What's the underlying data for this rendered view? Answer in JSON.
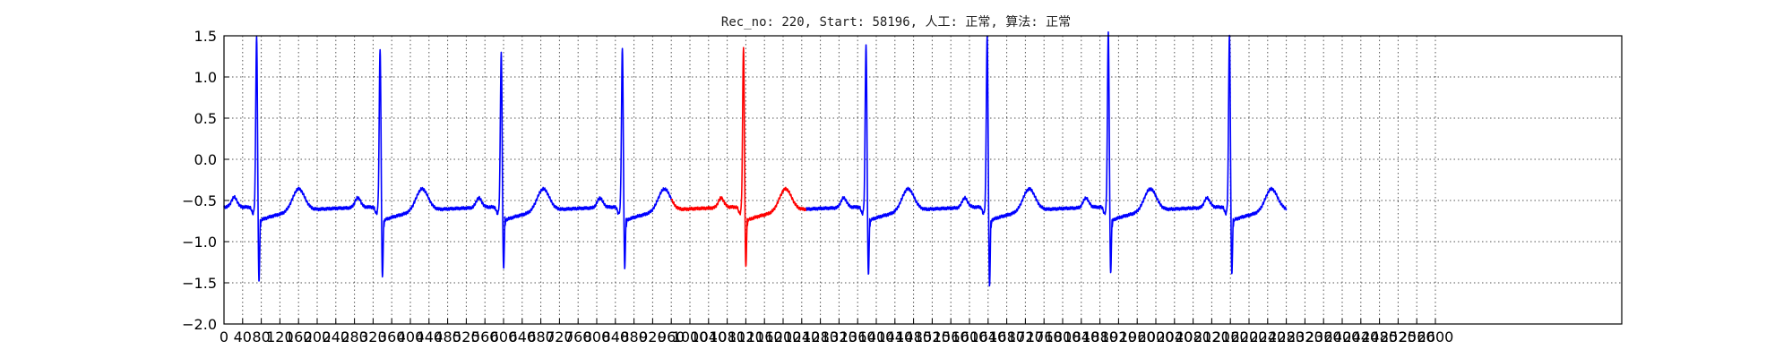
{
  "chart_data": {
    "type": "line",
    "title": "Rec_no: 220, Start: 58196, 人工: 正常, 算法: 正常",
    "xlabel": "",
    "ylabel": "",
    "xlim": [
      0,
      3000
    ],
    "ylim": [
      -2.0,
      1.5
    ],
    "grid": true,
    "y_ticks": [
      "1.5",
      "1.0",
      "0.5",
      "0.0",
      "−0.5",
      "−1.0",
      "−1.5",
      "−2.0"
    ],
    "y_tick_values": [
      1.5,
      1.0,
      0.5,
      0.0,
      -0.5,
      -1.0,
      -1.5,
      -2.0
    ],
    "x_ticks": [
      0,
      40,
      80,
      120,
      160,
      200,
      240,
      280,
      320,
      360,
      400,
      440,
      480,
      520,
      560,
      600,
      640,
      680,
      720,
      760,
      800,
      840,
      880,
      920,
      960,
      1000,
      1040,
      1080,
      1120,
      1160,
      1200,
      1240,
      1280,
      1320,
      1360,
      1400,
      1440,
      1480,
      1520,
      1560,
      1600,
      1640,
      1680,
      1720,
      1760,
      1800,
      1840,
      1880,
      1920,
      1960,
      2000,
      2040,
      2080,
      2120,
      2160,
      2200,
      2240,
      2280,
      2320,
      2360,
      2400,
      2440,
      2480,
      2520,
      2560,
      2600
    ],
    "x_tick_labels": [
      "0",
      "40",
      "80",
      "120",
      "160",
      "200",
      "240",
      "280",
      "320",
      "360",
      "400",
      "440",
      "480",
      "520",
      "560",
      "600",
      "640",
      "680",
      "720",
      "760",
      "800",
      "840",
      "880",
      "920",
      "960",
      "1000",
      "1040",
      "1080",
      "1120",
      "1160",
      "1200",
      "1240",
      "1280",
      "1320",
      "1360",
      "1400",
      "1440",
      "1480",
      "1520",
      "1560",
      "1600",
      "1640",
      "1680",
      "1720",
      "1760",
      "1800",
      "1840",
      "1880",
      "1920",
      "1960",
      "2000",
      "2040",
      "2080",
      "2120",
      "2160",
      "2200",
      "2240",
      "2280",
      "2320",
      "2360",
      "2400",
      "2440",
      "2480",
      "2520",
      "2560",
      "2600"
    ],
    "beats": [
      {
        "r": 70,
        "r_peak": 1.4,
        "s_trough": -1.53,
        "color": "#0000ff"
      },
      {
        "r": 335,
        "r_peak": 1.25,
        "s_trough": -1.47,
        "color": "#0000ff"
      },
      {
        "r": 595,
        "r_peak": 1.2,
        "s_trough": -1.37,
        "color": "#0000ff"
      },
      {
        "r": 855,
        "r_peak": 1.25,
        "s_trough": -1.35,
        "color": "#0000ff"
      },
      {
        "r": 1115,
        "r_peak": 1.27,
        "s_trough": -1.35,
        "color": "#ff0000"
      },
      {
        "r": 1378,
        "r_peak": 1.3,
        "s_trough": -1.45,
        "color": "#0000ff"
      },
      {
        "r": 1638,
        "r_peak": 1.4,
        "s_trough": -1.57,
        "color": "#0000ff"
      },
      {
        "r": 1898,
        "r_peak": 1.45,
        "s_trough": -1.42,
        "color": "#0000ff"
      },
      {
        "r": 2158,
        "r_peak": 1.42,
        "s_trough": -1.44,
        "color": "#0000ff"
      }
    ],
    "series": [
      {
        "color": "#0000ff",
        "x_range": [
          0,
          960
        ]
      },
      {
        "color": "#ff0000",
        "x_range": [
          960,
          1250
        ]
      },
      {
        "color": "#0000ff",
        "x_range": [
          1250,
          2280
        ]
      }
    ],
    "baseline": -0.58
  }
}
